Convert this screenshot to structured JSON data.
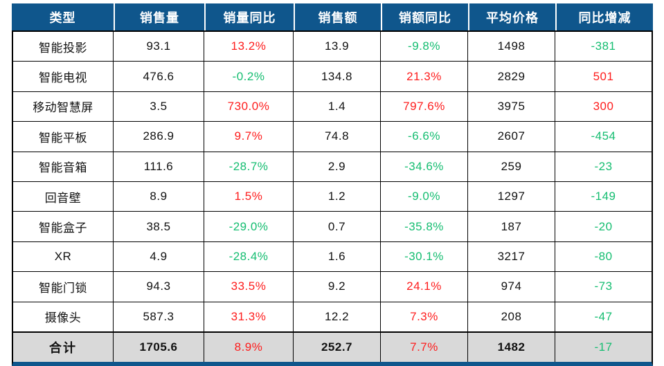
{
  "colors": {
    "header_bg": "#0F568C",
    "header_text": "#ffffff",
    "total_bg": "#D9D9D9",
    "positive_red": "#FE1C1C",
    "negative_green": "#14BD70",
    "text": "#111111",
    "border": "#000000"
  },
  "table": {
    "columns": [
      "类型",
      "销售量",
      "销量同比",
      "销售额",
      "销额同比",
      "平均价格",
      "同比增减"
    ],
    "column_keys": [
      "category",
      "sales-volume",
      "volume-yoy",
      "sales-amount",
      "amount-yoy",
      "avg-price",
      "yoy-change"
    ],
    "rows": [
      {
        "cells": [
          "智能投影",
          "93.1",
          "13.2%",
          "13.9",
          "-9.8%",
          "1498",
          "-381"
        ],
        "tones": [
          "k",
          "k",
          "r",
          "k",
          "g",
          "k",
          "g"
        ]
      },
      {
        "cells": [
          "智能电视",
          "476.6",
          "-0.2%",
          "134.8",
          "21.3%",
          "2829",
          "501"
        ],
        "tones": [
          "k",
          "k",
          "g",
          "k",
          "r",
          "k",
          "r"
        ]
      },
      {
        "cells": [
          "移动智慧屏",
          "3.5",
          "730.0%",
          "1.4",
          "797.6%",
          "3975",
          "300"
        ],
        "tones": [
          "k",
          "k",
          "r",
          "k",
          "r",
          "k",
          "r"
        ]
      },
      {
        "cells": [
          "智能平板",
          "286.9",
          "9.7%",
          "74.8",
          "-6.6%",
          "2607",
          "-454"
        ],
        "tones": [
          "k",
          "k",
          "r",
          "k",
          "g",
          "k",
          "g"
        ]
      },
      {
        "cells": [
          "智能音箱",
          "111.6",
          "-28.7%",
          "2.9",
          "-34.6%",
          "259",
          "-23"
        ],
        "tones": [
          "k",
          "k",
          "g",
          "k",
          "g",
          "k",
          "g"
        ]
      },
      {
        "cells": [
          "回音壁",
          "8.9",
          "1.5%",
          "1.2",
          "-9.0%",
          "1297",
          "-149"
        ],
        "tones": [
          "k",
          "k",
          "r",
          "k",
          "g",
          "k",
          "g"
        ]
      },
      {
        "cells": [
          "智能盒子",
          "38.5",
          "-29.0%",
          "0.7",
          "-35.8%",
          "187",
          "-20"
        ],
        "tones": [
          "k",
          "k",
          "g",
          "k",
          "g",
          "k",
          "g"
        ]
      },
      {
        "cells": [
          "XR",
          "4.9",
          "-28.4%",
          "1.6",
          "-30.1%",
          "3217",
          "-80"
        ],
        "tones": [
          "k",
          "k",
          "g",
          "k",
          "g",
          "k",
          "g"
        ]
      },
      {
        "cells": [
          "智能门锁",
          "94.3",
          "33.5%",
          "9.2",
          "24.1%",
          "974",
          "-73"
        ],
        "tones": [
          "k",
          "k",
          "r",
          "k",
          "r",
          "k",
          "g"
        ]
      },
      {
        "cells": [
          "摄像头",
          "587.3",
          "31.3%",
          "12.2",
          "7.3%",
          "208",
          "-47"
        ],
        "tones": [
          "k",
          "k",
          "r",
          "k",
          "r",
          "k",
          "g"
        ]
      }
    ],
    "total": {
      "cells": [
        "合计",
        "1705.6",
        "8.9%",
        "252.7",
        "7.7%",
        "1482",
        "-17"
      ],
      "tones": [
        "k",
        "k",
        "r",
        "k",
        "r",
        "k",
        "g"
      ]
    }
  },
  "chart_data": {
    "type": "table",
    "columns": [
      "类型",
      "销售量",
      "销量同比",
      "销售额",
      "销额同比",
      "平均价格",
      "同比增减"
    ],
    "rows": [
      [
        "智能投影",
        93.1,
        "13.2%",
        13.9,
        "-9.8%",
        1498,
        -381
      ],
      [
        "智能电视",
        476.6,
        "-0.2%",
        134.8,
        "21.3%",
        2829,
        501
      ],
      [
        "移动智慧屏",
        3.5,
        "730.0%",
        1.4,
        "797.6%",
        3975,
        300
      ],
      [
        "智能平板",
        286.9,
        "9.7%",
        74.8,
        "-6.6%",
        2607,
        -454
      ],
      [
        "智能音箱",
        111.6,
        "-28.7%",
        2.9,
        "-34.6%",
        259,
        -23
      ],
      [
        "回音壁",
        8.9,
        "1.5%",
        1.2,
        "-9.0%",
        1297,
        -149
      ],
      [
        "智能盒子",
        38.5,
        "-29.0%",
        0.7,
        "-35.8%",
        187,
        -20
      ],
      [
        "XR",
        4.9,
        "-28.4%",
        1.6,
        "-30.1%",
        3217,
        -80
      ],
      [
        "智能门锁",
        94.3,
        "33.5%",
        9.2,
        "24.1%",
        974,
        -73
      ],
      [
        "摄像头",
        587.3,
        "31.3%",
        12.2,
        "7.3%",
        208,
        -47
      ]
    ],
    "total_row": [
      "合计",
      1705.6,
      "8.9%",
      252.7,
      "7.7%",
      1482,
      -17
    ],
    "color_convention": "red = year-over-year increase, green = year-over-year decrease"
  }
}
